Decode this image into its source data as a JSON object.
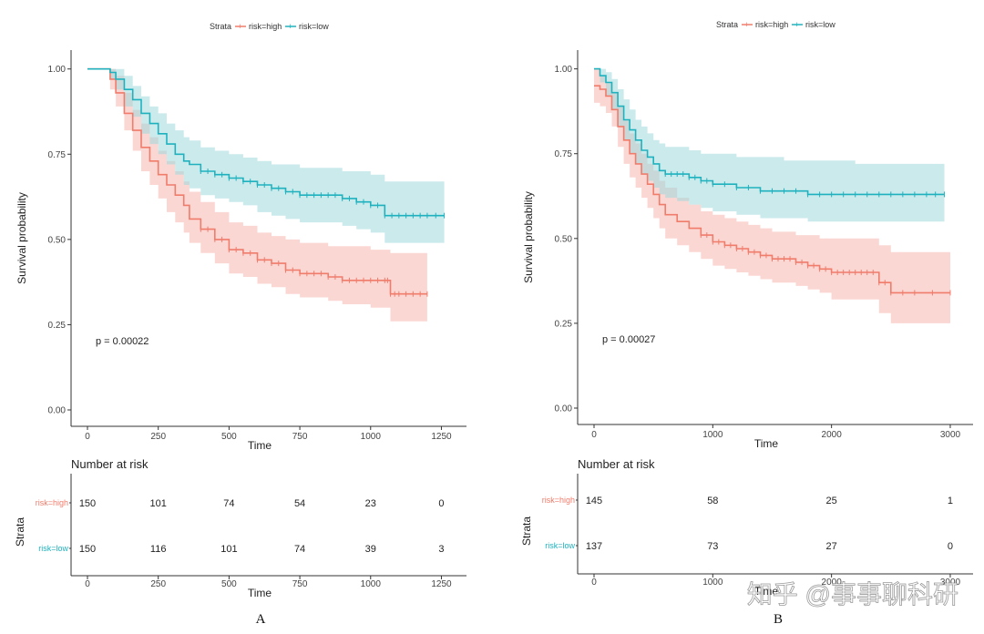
{
  "colors": {
    "high": "#f07c6c",
    "low": "#1fb2be",
    "high_fill": "#f7b7ae",
    "low_fill": "#9ed8dd"
  },
  "watermark": "知乎 @事事聊科研",
  "chart_data": [
    {
      "type": "line",
      "panel_label": "A",
      "xlabel": "Time",
      "ylabel": "Survival probability",
      "xlim": [
        0,
        1300
      ],
      "ylim": [
        0,
        1.05
      ],
      "xticks": [
        0,
        250,
        500,
        750,
        1000,
        1250
      ],
      "yticks": [
        0.0,
        0.25,
        0.5,
        0.75,
        1.0
      ],
      "ytick_labels": [
        "0.00",
        "0.25",
        "0.50",
        "0.75",
        "1.00"
      ],
      "legend": {
        "title": "Strata",
        "entries": [
          "risk=high",
          "risk=low"
        ],
        "position": "top"
      },
      "pvalue": "p = 0.00022",
      "series": [
        {
          "name": "risk=high",
          "x": [
            0,
            50,
            80,
            100,
            130,
            160,
            190,
            220,
            250,
            280,
            310,
            340,
            360,
            400,
            450,
            500,
            550,
            600,
            650,
            700,
            750,
            800,
            850,
            900,
            950,
            1000,
            1050,
            1070,
            1100,
            1150,
            1200
          ],
          "y": [
            1.0,
            1.0,
            0.97,
            0.93,
            0.87,
            0.82,
            0.77,
            0.73,
            0.69,
            0.66,
            0.63,
            0.6,
            0.56,
            0.53,
            0.5,
            0.47,
            0.46,
            0.44,
            0.43,
            0.41,
            0.4,
            0.4,
            0.39,
            0.38,
            0.38,
            0.38,
            0.38,
            0.34,
            0.34,
            0.34,
            0.34
          ],
          "upper": [
            1.0,
            1.0,
            1.0,
            0.98,
            0.93,
            0.88,
            0.84,
            0.8,
            0.76,
            0.73,
            0.7,
            0.67,
            0.64,
            0.61,
            0.58,
            0.55,
            0.54,
            0.52,
            0.51,
            0.5,
            0.49,
            0.49,
            0.48,
            0.48,
            0.48,
            0.47,
            0.47,
            0.46,
            0.46,
            0.46,
            0.46
          ],
          "lower": [
            1.0,
            1.0,
            0.94,
            0.89,
            0.82,
            0.76,
            0.7,
            0.66,
            0.62,
            0.58,
            0.55,
            0.52,
            0.49,
            0.46,
            0.43,
            0.4,
            0.39,
            0.37,
            0.36,
            0.34,
            0.33,
            0.33,
            0.32,
            0.31,
            0.31,
            0.3,
            0.3,
            0.26,
            0.26,
            0.26,
            0.26
          ]
        },
        {
          "name": "risk=low",
          "x": [
            0,
            50,
            80,
            100,
            130,
            160,
            190,
            220,
            250,
            280,
            310,
            340,
            360,
            400,
            450,
            500,
            550,
            600,
            650,
            700,
            750,
            800,
            850,
            900,
            950,
            1000,
            1050,
            1100,
            1150,
            1200,
            1260
          ],
          "y": [
            1.0,
            1.0,
            0.99,
            0.97,
            0.94,
            0.91,
            0.87,
            0.84,
            0.81,
            0.78,
            0.75,
            0.73,
            0.72,
            0.7,
            0.69,
            0.68,
            0.67,
            0.66,
            0.65,
            0.64,
            0.63,
            0.63,
            0.63,
            0.62,
            0.61,
            0.6,
            0.57,
            0.57,
            0.57,
            0.57,
            0.57
          ],
          "upper": [
            1.0,
            1.0,
            1.0,
            1.0,
            0.98,
            0.95,
            0.92,
            0.89,
            0.87,
            0.84,
            0.82,
            0.8,
            0.79,
            0.77,
            0.76,
            0.75,
            0.74,
            0.73,
            0.72,
            0.72,
            0.71,
            0.71,
            0.71,
            0.7,
            0.7,
            0.69,
            0.67,
            0.67,
            0.67,
            0.67,
            0.67
          ],
          "lower": [
            1.0,
            1.0,
            0.97,
            0.94,
            0.89,
            0.86,
            0.81,
            0.78,
            0.75,
            0.72,
            0.69,
            0.66,
            0.65,
            0.63,
            0.62,
            0.61,
            0.6,
            0.58,
            0.57,
            0.56,
            0.55,
            0.55,
            0.55,
            0.54,
            0.53,
            0.52,
            0.49,
            0.49,
            0.49,
            0.49,
            0.49
          ]
        }
      ],
      "risk_table": {
        "title": "Number at risk",
        "ylabel": "Strata",
        "xlabel": "Time",
        "times": [
          0,
          250,
          500,
          750,
          1000,
          1250
        ],
        "time_labels": [
          "0",
          "250",
          "500",
          "750",
          "1000",
          "1250"
        ],
        "rows": [
          {
            "label": "risk=high",
            "values": [
              "150",
              "101",
              "74",
              "54",
              "23",
              "0"
            ]
          },
          {
            "label": "risk=low",
            "values": [
              "150",
              "116",
              "101",
              "74",
              "39",
              "3"
            ]
          }
        ]
      }
    },
    {
      "type": "line",
      "panel_label": "B",
      "xlabel": "Time",
      "ylabel": "Survival probability",
      "xlim": [
        0,
        3100
      ],
      "ylim": [
        0,
        1.05
      ],
      "xticks": [
        0,
        1000,
        2000,
        3000
      ],
      "yticks": [
        0.0,
        0.25,
        0.5,
        0.75,
        1.0
      ],
      "ytick_labels": [
        "0.00",
        "0.25",
        "0.50",
        "0.75",
        "1.00"
      ],
      "legend": {
        "title": "Strata",
        "entries": [
          "risk=high",
          "risk=low"
        ],
        "position": "top"
      },
      "pvalue": "p = 0.00027",
      "series": [
        {
          "name": "risk=high",
          "x": [
            0,
            50,
            100,
            150,
            200,
            250,
            300,
            350,
            400,
            450,
            500,
            550,
            600,
            700,
            800,
            900,
            1000,
            1100,
            1200,
            1300,
            1400,
            1500,
            1600,
            1700,
            1800,
            1900,
            2000,
            2100,
            2200,
            2300,
            2400,
            2500,
            2700,
            3000
          ],
          "y": [
            0.95,
            0.94,
            0.92,
            0.88,
            0.83,
            0.79,
            0.75,
            0.72,
            0.69,
            0.66,
            0.63,
            0.6,
            0.57,
            0.55,
            0.53,
            0.51,
            0.49,
            0.48,
            0.47,
            0.46,
            0.45,
            0.44,
            0.44,
            0.43,
            0.42,
            0.41,
            0.4,
            0.4,
            0.4,
            0.4,
            0.37,
            0.34,
            0.34,
            0.34
          ],
          "upper": [
            1.0,
            0.98,
            0.96,
            0.93,
            0.89,
            0.85,
            0.81,
            0.78,
            0.75,
            0.72,
            0.7,
            0.67,
            0.65,
            0.62,
            0.6,
            0.58,
            0.57,
            0.56,
            0.55,
            0.54,
            0.53,
            0.52,
            0.52,
            0.51,
            0.51,
            0.5,
            0.5,
            0.5,
            0.5,
            0.5,
            0.48,
            0.46,
            0.46,
            0.46
          ],
          "lower": [
            0.9,
            0.89,
            0.87,
            0.83,
            0.77,
            0.72,
            0.68,
            0.65,
            0.62,
            0.59,
            0.56,
            0.53,
            0.5,
            0.48,
            0.46,
            0.44,
            0.42,
            0.41,
            0.4,
            0.39,
            0.38,
            0.37,
            0.37,
            0.36,
            0.35,
            0.34,
            0.32,
            0.32,
            0.32,
            0.32,
            0.28,
            0.25,
            0.25,
            0.25
          ]
        },
        {
          "name": "risk=low",
          "x": [
            0,
            50,
            100,
            150,
            200,
            250,
            300,
            350,
            400,
            450,
            500,
            550,
            600,
            700,
            800,
            900,
            1000,
            1200,
            1400,
            1600,
            1800,
            2000,
            2200,
            2400,
            2600,
            2800,
            2950
          ],
          "y": [
            1.0,
            0.98,
            0.96,
            0.93,
            0.89,
            0.85,
            0.82,
            0.79,
            0.76,
            0.74,
            0.72,
            0.7,
            0.69,
            0.69,
            0.68,
            0.67,
            0.66,
            0.65,
            0.64,
            0.64,
            0.63,
            0.63,
            0.63,
            0.63,
            0.63,
            0.63,
            0.63
          ],
          "upper": [
            1.0,
            1.0,
            0.99,
            0.97,
            0.94,
            0.91,
            0.88,
            0.85,
            0.83,
            0.81,
            0.79,
            0.78,
            0.77,
            0.77,
            0.76,
            0.75,
            0.75,
            0.74,
            0.74,
            0.73,
            0.73,
            0.73,
            0.72,
            0.72,
            0.72,
            0.72,
            0.72
          ],
          "lower": [
            1.0,
            0.96,
            0.92,
            0.88,
            0.83,
            0.79,
            0.75,
            0.72,
            0.69,
            0.67,
            0.65,
            0.63,
            0.62,
            0.61,
            0.6,
            0.59,
            0.58,
            0.57,
            0.56,
            0.56,
            0.55,
            0.55,
            0.55,
            0.55,
            0.55,
            0.55,
            0.55
          ]
        }
      ],
      "risk_table": {
        "title": "Number at risk",
        "ylabel": "Strata",
        "xlabel": "Time",
        "times": [
          0,
          1000,
          2000,
          3000
        ],
        "time_labels": [
          "0",
          "1000",
          "2000",
          "3000"
        ],
        "rows": [
          {
            "label": "risk=high",
            "values": [
              "145",
              "58",
              "25",
              "1"
            ]
          },
          {
            "label": "risk=low",
            "values": [
              "137",
              "73",
              "27",
              "0"
            ]
          }
        ]
      }
    }
  ]
}
